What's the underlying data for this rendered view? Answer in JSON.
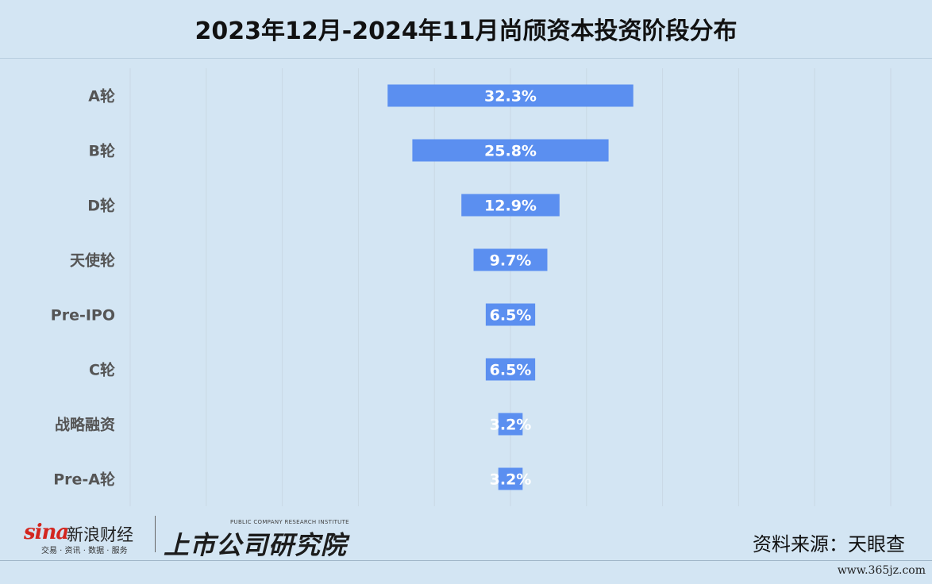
{
  "title": "2023年12月-2024年11月尚颀资本投资阶段分布",
  "chart_data": {
    "type": "bar",
    "orientation": "horizontal",
    "layout": "funnel-centered",
    "categories": [
      "A轮",
      "B轮",
      "D轮",
      "天使轮",
      "Pre-IPO",
      "C轮",
      "战略融资",
      "Pre-A轮"
    ],
    "values": [
      32.3,
      25.8,
      12.9,
      9.7,
      6.5,
      6.5,
      3.2,
      3.2
    ],
    "labels": [
      "32.3%",
      "25.8%",
      "12.9%",
      "9.7%",
      "6.5%",
      "6.5%",
      "3.2%",
      "3.2%"
    ],
    "xlim": [
      -50,
      50
    ],
    "grid": "vertical",
    "bar_color": "#5b8ff0",
    "grid_color": "#c9d8e4",
    "label_color": "#ffffff"
  },
  "footer": {
    "sina_word": "sina",
    "sina_cn": "新浪财经",
    "sina_sub": "交易 · 资讯 · 数据 · 服务",
    "institute_en": "PUBLIC COMPANY RESEARCH INSTITUTE",
    "institute_cn": "上市公司研究院",
    "source": "资料来源：天眼查",
    "watermark": "www.365jz.com"
  },
  "colors": {
    "background": "#d3e5f3",
    "sina_red": "#d3261f"
  }
}
